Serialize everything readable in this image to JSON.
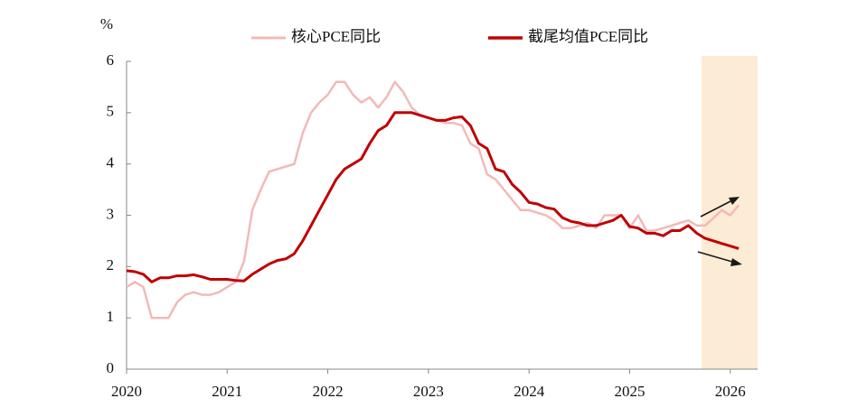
{
  "chart_data": {
    "type": "line",
    "y_label": "%",
    "categories": [
      "2020",
      null,
      null,
      null,
      null,
      null,
      null,
      null,
      null,
      null,
      null,
      null,
      "2021",
      null,
      null,
      null,
      null,
      null,
      null,
      null,
      null,
      null,
      null,
      null,
      "2022",
      null,
      null,
      null,
      null,
      null,
      null,
      null,
      null,
      null,
      null,
      null,
      "2023",
      null,
      null,
      null,
      null,
      null,
      null,
      null,
      null,
      null,
      null,
      null,
      "2024",
      null,
      null,
      null,
      null,
      null,
      null,
      null,
      null,
      null,
      null,
      null,
      "2025",
      null,
      null,
      null,
      null,
      null,
      null,
      null,
      null,
      null,
      null,
      null,
      "2026",
      null
    ],
    "series": [
      {
        "name": "核心PCE同比",
        "color": "#f2b9b9",
        "values": [
          1.6,
          1.7,
          1.6,
          1.0,
          1.0,
          1.0,
          1.3,
          1.45,
          1.5,
          1.45,
          1.45,
          1.5,
          1.6,
          1.7,
          2.1,
          3.1,
          3.5,
          3.85,
          3.9,
          3.95,
          4.0,
          4.6,
          5.0,
          5.2,
          5.35,
          5.6,
          5.6,
          5.35,
          5.2,
          5.3,
          5.1,
          5.3,
          5.6,
          5.4,
          5.1,
          4.95,
          4.9,
          4.85,
          4.8,
          4.8,
          4.75,
          4.4,
          4.3,
          3.8,
          3.7,
          3.5,
          3.3,
          3.1,
          3.1,
          3.05,
          3.0,
          2.9,
          2.75,
          2.75,
          2.8,
          2.85,
          2.75,
          3.0,
          3.0,
          3.0,
          2.75,
          3.0,
          2.7,
          2.7,
          2.75,
          2.8,
          2.85,
          2.9,
          2.8,
          2.8,
          2.95,
          3.1,
          3.0,
          3.2
        ]
      },
      {
        "name": "截尾均值PCE同比",
        "color": "#c00000",
        "values": [
          1.92,
          1.9,
          1.85,
          1.7,
          1.78,
          1.78,
          1.82,
          1.82,
          1.84,
          1.8,
          1.75,
          1.75,
          1.75,
          1.73,
          1.72,
          1.85,
          1.95,
          2.05,
          2.12,
          2.15,
          2.25,
          2.5,
          2.8,
          3.1,
          3.4,
          3.7,
          3.9,
          4.0,
          4.1,
          4.4,
          4.65,
          4.75,
          5.0,
          5.0,
          5.0,
          4.95,
          4.9,
          4.85,
          4.85,
          4.9,
          4.92,
          4.75,
          4.4,
          4.3,
          3.9,
          3.85,
          3.6,
          3.45,
          3.25,
          3.22,
          3.15,
          3.12,
          2.95,
          2.88,
          2.85,
          2.8,
          2.8,
          2.85,
          2.9,
          3.0,
          2.78,
          2.75,
          2.65,
          2.65,
          2.6,
          2.7,
          2.7,
          2.8,
          2.65,
          2.55,
          2.5,
          2.45,
          2.4,
          2.35
        ]
      }
    ],
    "ylim": [
      0,
      6
    ],
    "yticks": [
      0,
      1,
      2,
      3,
      4,
      5,
      6
    ]
  }
}
